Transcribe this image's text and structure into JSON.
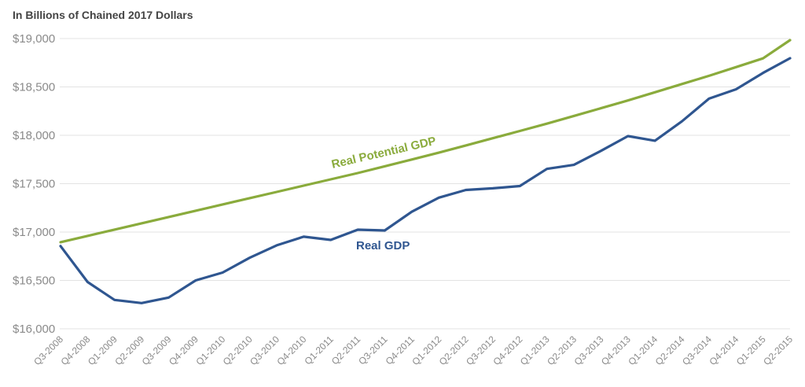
{
  "chart_data": {
    "type": "line",
    "title": "In Billions of Chained 2017 Dollars",
    "xlabel": "",
    "ylabel": "",
    "ylim": [
      16000,
      19000
    ],
    "yticks": [
      16000,
      16500,
      17000,
      17500,
      18000,
      18500,
      19000
    ],
    "ytick_labels": [
      "$16,000",
      "$16,500",
      "$17,000",
      "$17,500",
      "$18,000",
      "$18,500",
      "$19,000"
    ],
    "grid": true,
    "categories": [
      "Q3-2008",
      "Q4-2008",
      "Q1-2009",
      "Q2-2009",
      "Q3-2009",
      "Q4-2009",
      "Q1-2010",
      "Q2-2010",
      "Q3-2010",
      "Q4-2010",
      "Q1-2011",
      "Q2-2011",
      "Q3-2011",
      "Q4-2011",
      "Q1-2012",
      "Q2-2012",
      "Q3-2012",
      "Q4-2012",
      "Q1-2013",
      "Q2-2013",
      "Q3-2013",
      "Q4-2013",
      "Q1-2014",
      "Q2-2014",
      "Q3-2014",
      "Q4-2014",
      "Q1-2015",
      "Q2-2015"
    ],
    "series": [
      {
        "name": "Real Potential GDP",
        "color": "#8aab3c",
        "values": [
          16895,
          16960,
          17025,
          17090,
          17155,
          17220,
          17285,
          17350,
          17415,
          17480,
          17545,
          17610,
          17680,
          17750,
          17820,
          17895,
          17970,
          18045,
          18120,
          18200,
          18280,
          18360,
          18445,
          18530,
          18615,
          18705,
          18795,
          18984
        ]
      },
      {
        "name": "Real GDP",
        "color": "#2f5690",
        "values": [
          16855,
          16484,
          16298,
          16266,
          16323,
          16500,
          16581,
          16734,
          16863,
          16952,
          16919,
          17024,
          17016,
          17210,
          17355,
          17435,
          17452,
          17476,
          17653,
          17694,
          17839,
          17992,
          17944,
          18145,
          18379,
          18476,
          18645,
          18797
        ]
      }
    ]
  }
}
